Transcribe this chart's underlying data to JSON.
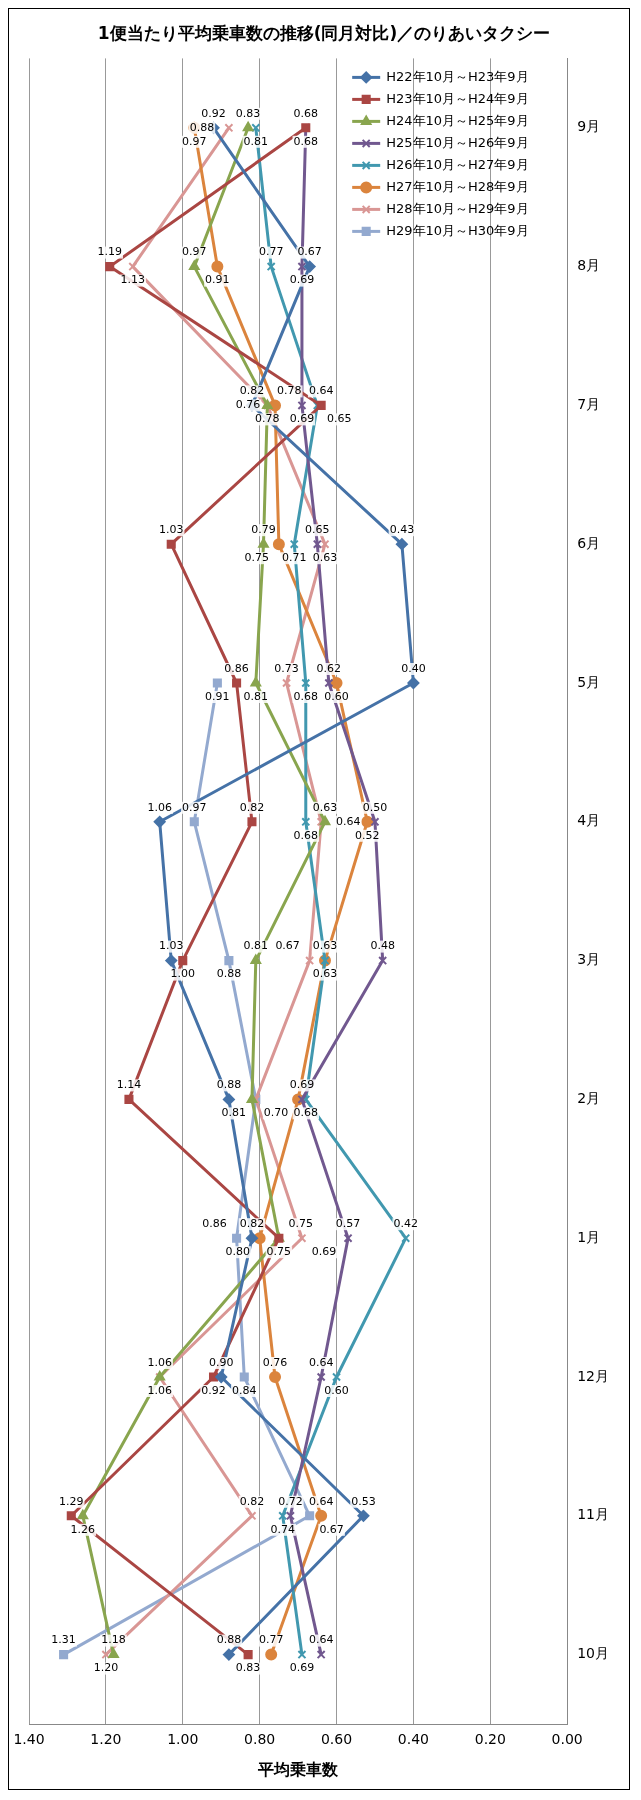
{
  "chart_data": {
    "type": "line",
    "orientation": "horizontal",
    "title": "1便当たり平均乗車数の推移(同月対比)／のりあいタクシー",
    "xlabel": "平均乗車数",
    "categories": [
      "9月",
      "8月",
      "7月",
      "6月",
      "5月",
      "4月",
      "3月",
      "2月",
      "1月",
      "12月",
      "11月",
      "10月"
    ],
    "xlim": [
      1.4,
      0
    ],
    "xticks": [
      {
        "value": 0,
        "label": "0.00"
      },
      {
        "value": 0.2,
        "label": "0.20"
      },
      {
        "value": 0.4,
        "label": "0.40"
      },
      {
        "value": 0.6,
        "label": "0.60"
      },
      {
        "value": 0.8,
        "label": "0.80"
      },
      {
        "value": 1,
        "label": "1.00"
      },
      {
        "value": 1.2,
        "label": "1.20"
      },
      {
        "value": 1.4,
        "label": "1.40"
      }
    ],
    "grid": "x",
    "legend": "top right",
    "line_style": "solid",
    "series": [
      {
        "name": "H22年10月～H23年9月",
        "color": "#4572a7",
        "marker": "diamond",
        "values": [
          0.92,
          0.67,
          0.82,
          0.43,
          0.4,
          1.06,
          1.03,
          0.88,
          0.82,
          0.9,
          0.53,
          0.88
        ],
        "value_labels": [
          "0.92",
          "0.67",
          "0.82",
          "0.43",
          "0.40",
          "1.06",
          "1.03",
          "0.88",
          "0.82",
          "0.90",
          "0.53",
          "0.88"
        ]
      },
      {
        "name": "H23年10月～H24年9月",
        "color": "#aa4643",
        "marker": "square",
        "values": [
          0.68,
          1.19,
          0.64,
          1.03,
          0.86,
          0.82,
          1.0,
          1.14,
          0.75,
          0.92,
          1.29,
          0.83
        ],
        "value_labels": [
          "0.68",
          "1.19",
          "0.64",
          "1.03",
          "0.86",
          "0.82",
          "1.00",
          "1.14",
          "0.75",
          "0.92",
          "1.29",
          "0.83"
        ]
      },
      {
        "name": "H24年10月～H25年9月",
        "color": "#89a54e",
        "marker": "triangle",
        "values": [
          0.83,
          0.97,
          0.78,
          0.79,
          0.81,
          0.63,
          0.81,
          0.82,
          0.75,
          1.06,
          1.26,
          1.18
        ],
        "value_labels": [
          "0.83",
          "0.97",
          "0.78",
          "0.79",
          "0.81",
          "0.63",
          "0.81",
          null,
          "0.75",
          "1.06",
          "1.26",
          "1.18"
        ]
      },
      {
        "name": "H25年10月～H26年9月",
        "color": "#71588f",
        "marker": "cross",
        "values": [
          0.68,
          0.69,
          0.69,
          0.65,
          0.62,
          0.5,
          0.48,
          0.69,
          0.57,
          0.64,
          0.72,
          0.64
        ],
        "value_labels": [
          "0.68",
          "0.69",
          "0.69",
          "0.65",
          "0.62",
          "0.50",
          "0.48",
          "0.69",
          "0.57",
          "0.64",
          "0.72",
          "0.64"
        ]
      },
      {
        "name": "H26年10月～H27年9月",
        "color": "#4198af",
        "marker": "cross",
        "values": [
          0.81,
          0.77,
          0.65,
          0.71,
          0.68,
          0.68,
          0.63,
          0.68,
          0.42,
          0.6,
          0.74,
          0.69
        ],
        "value_labels": [
          "0.81",
          "0.77",
          "0.65",
          "0.71",
          "0.68",
          "0.68",
          "0.63",
          "0.68",
          "0.42",
          "0.60",
          "0.74",
          "0.69"
        ]
      },
      {
        "name": "H27年10月～H28年9月",
        "color": "#db843d",
        "marker": "circle",
        "values": [
          0.97,
          0.91,
          0.76,
          0.75,
          0.6,
          0.52,
          0.63,
          0.7,
          0.8,
          0.76,
          0.64,
          0.77
        ],
        "value_labels": [
          "0.97",
          "0.91",
          "0.76",
          "0.75",
          "0.60",
          "0.52",
          "0.63",
          "0.70",
          "0.80",
          "0.76",
          "0.64",
          "0.77"
        ]
      },
      {
        "name": "H28年10月～H29年9月",
        "color": "#d99694",
        "marker": "cross",
        "values": [
          0.88,
          1.13,
          0.78,
          0.63,
          0.73,
          0.64,
          0.67,
          0.81,
          0.69,
          1.06,
          0.82,
          1.2
        ],
        "value_labels": [
          "0.88",
          "1.13",
          "0.78",
          "0.63",
          "0.73",
          "0.64",
          "0.67",
          null,
          "0.69",
          "1.06",
          "0.82",
          "1.20"
        ]
      },
      {
        "name": "H29年10月～H30年9月",
        "color": "#93a9cf",
        "marker": "square",
        "values": [
          null,
          null,
          null,
          null,
          0.91,
          0.97,
          0.88,
          0.81,
          0.86,
          0.84,
          0.67,
          1.31
        ],
        "value_labels": [
          null,
          null,
          null,
          null,
          "0.91",
          "0.97",
          "0.88",
          "0.81",
          "0.86",
          "0.84",
          "0.67",
          "1.31"
        ]
      }
    ]
  }
}
